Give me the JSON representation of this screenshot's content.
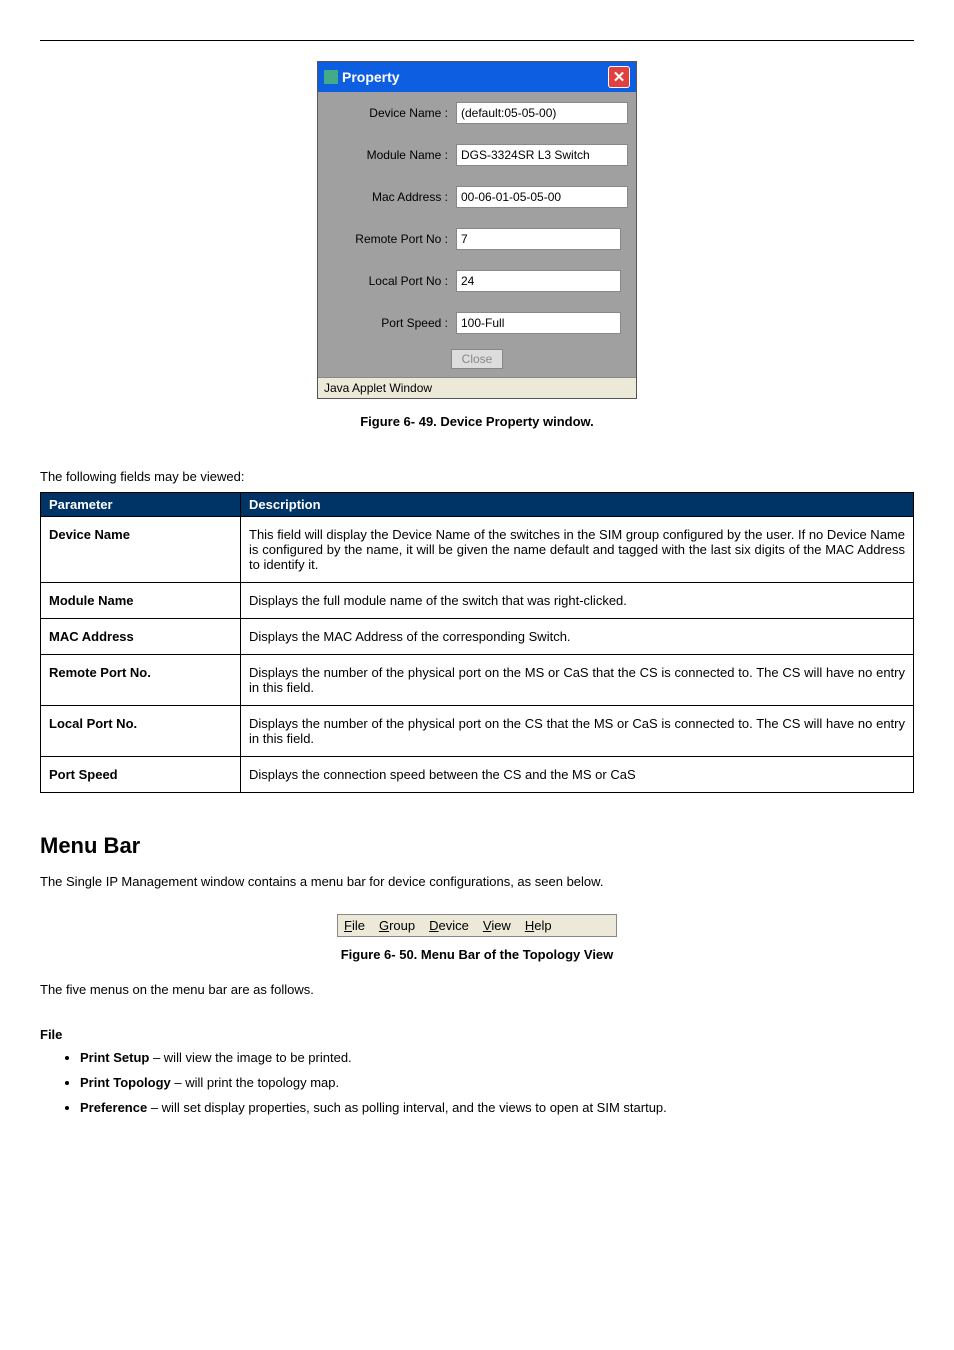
{
  "property_window": {
    "title": "Property",
    "rows": [
      {
        "label": "Device Name :",
        "value": "(default:05-05-00)",
        "width": "full"
      },
      {
        "label": "Module Name :",
        "value": "DGS-3324SR L3 Switch",
        "width": "full"
      },
      {
        "label": "Mac Address :",
        "value": "00-06-01-05-05-00",
        "width": "full"
      },
      {
        "label": "Remote Port No :",
        "value": "7",
        "width": "narrow"
      },
      {
        "label": "Local Port No :",
        "value": "24",
        "width": "narrow"
      },
      {
        "label": "Port Speed :",
        "value": "100-Full",
        "width": "short"
      }
    ],
    "close_label": "Close",
    "status": "Java Applet Window"
  },
  "figure49_caption": "Figure 6- 49. Device Property window.",
  "param_intro": "The following fields may be viewed:",
  "param_headers": {
    "name": "Parameter",
    "desc": "Description"
  },
  "params": [
    {
      "name": "Device Name",
      "desc": "This field will display the Device Name of the switches in the SIM group configured by the user. If no Device Name is configured by the name, it will be given the name default and tagged with the last six digits of the MAC Address to identify it."
    },
    {
      "name": "Module Name",
      "desc": "Displays the full module name of the switch that was right-clicked."
    },
    {
      "name": "MAC Address",
      "desc": "Displays the MAC Address of the corresponding Switch."
    },
    {
      "name": "Remote Port No.",
      "desc": "Displays the number of the physical port on the MS or CaS that the CS is connected to. The CS will have no entry in this field."
    },
    {
      "name": "Local Port No.",
      "desc": "Displays the number of the physical port on the CS that the MS or CaS is connected to. The CS will have no entry in this field."
    },
    {
      "name": "Port Speed",
      "desc": "Displays the connection speed between the CS and the MS or CaS"
    }
  ],
  "menu_bar_section": {
    "heading": "Menu Bar",
    "intro": "The Single IP Management window contains a menu bar for device configurations, as seen below.",
    "items": [
      {
        "key": "F",
        "rest": "ile"
      },
      {
        "key": "G",
        "rest": "roup"
      },
      {
        "key": "D",
        "rest": "evice"
      },
      {
        "key": "V",
        "rest": "iew"
      },
      {
        "key": "H",
        "rest": "elp"
      }
    ],
    "caption": "Figure 6- 50. Menu Bar of the Topology View",
    "post_text": "The five menus on the menu bar are as follows."
  },
  "file_section": {
    "title": "File",
    "bullets": [
      {
        "bold": "Print Setup",
        "text": " – will view the image to be printed."
      },
      {
        "bold": "Print Topology",
        "text": " – will print the topology map."
      },
      {
        "bold": "Preference",
        "text": " – will set display properties, such as polling interval, and the views to open at SIM startup."
      }
    ]
  }
}
